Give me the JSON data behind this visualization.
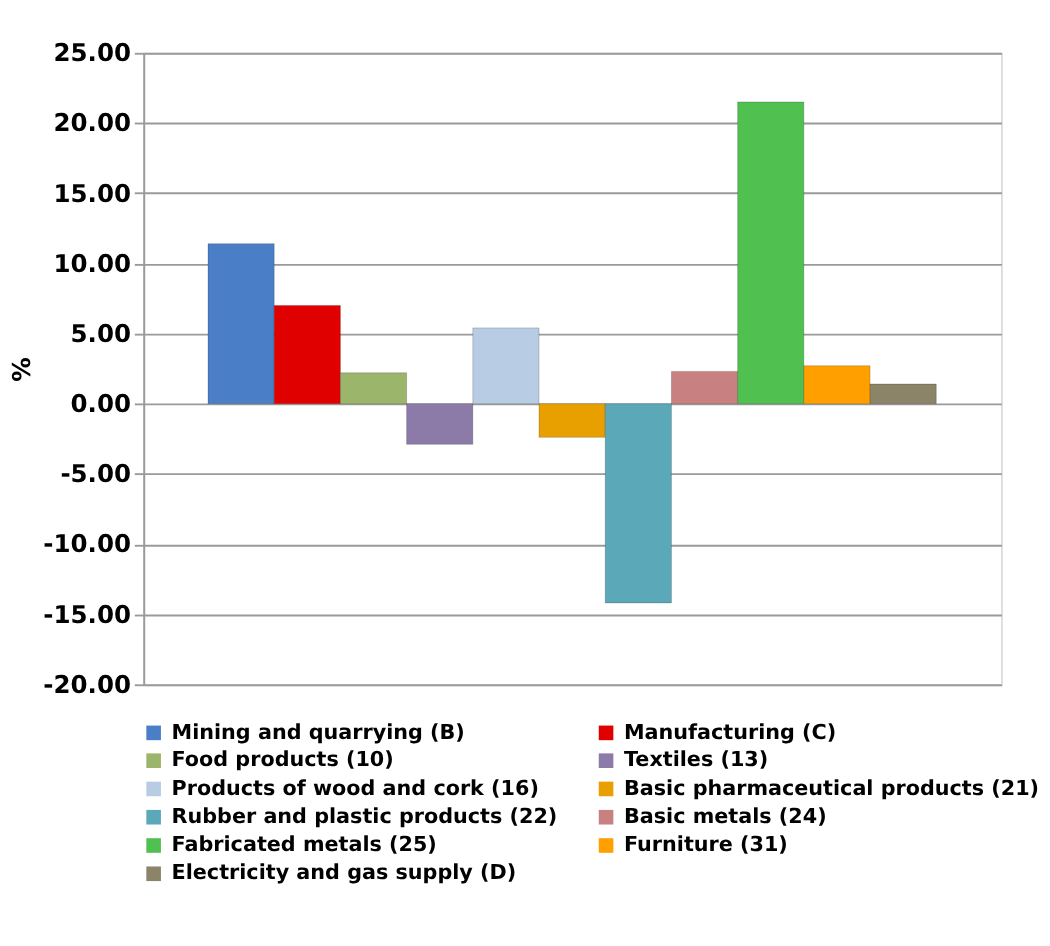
{
  "chart_data": {
    "type": "bar",
    "ylabel": "%",
    "categories": [
      null
    ],
    "series": [
      {
        "name": "Mining and quarrying (B)",
        "color": "#4a7fc8",
        "values": [
          11.4
        ]
      },
      {
        "name": "Manufacturing (C)",
        "color": "#e00000",
        "values": [
          7.0
        ]
      },
      {
        "name": "Food products (10)",
        "color": "#9bb56a",
        "values": [
          2.2
        ]
      },
      {
        "name": "Textiles (13)",
        "color": "#8c7aa8",
        "values": [
          -2.9
        ]
      },
      {
        "name": "Products of wood and cork (16)",
        "color": "#b8cce4",
        "values": [
          5.4
        ]
      },
      {
        "name": "Basic pharmaceutical products (21)",
        "color": "#e8a000",
        "values": [
          -2.4
        ]
      },
      {
        "name": "Rubber and plastic products (22)",
        "color": "#5aa8b8",
        "values": [
          -14.2
        ]
      },
      {
        "name": "Basic metals (24)",
        "color": "#c88080",
        "values": [
          2.3
        ]
      },
      {
        "name": "Fabricated metals (25)",
        "color": "#50c050",
        "values": [
          21.5
        ]
      },
      {
        "name": "Furniture (31)",
        "color": "#ffa000",
        "values": [
          2.7
        ]
      },
      {
        "name": "Electricity and gas supply (D)",
        "color": "#8c8468",
        "values": [
          1.4
        ]
      }
    ],
    "ylim": [
      -20,
      25
    ],
    "yticks": [
      {
        "value": -20,
        "label": "-20.00"
      },
      {
        "value": -15,
        "label": "-15.00"
      },
      {
        "value": -10,
        "label": "-10.00"
      },
      {
        "value": -5,
        "label": "-5.00"
      },
      {
        "value": 0,
        "label": "0.00"
      },
      {
        "value": 5,
        "label": "5.00"
      },
      {
        "value": 10,
        "label": "10.00"
      },
      {
        "value": 15,
        "label": "15.00"
      },
      {
        "value": 20,
        "label": "20.00"
      },
      {
        "value": 25,
        "label": "25.00"
      }
    ],
    "grid": "y",
    "legend": "bottom"
  }
}
